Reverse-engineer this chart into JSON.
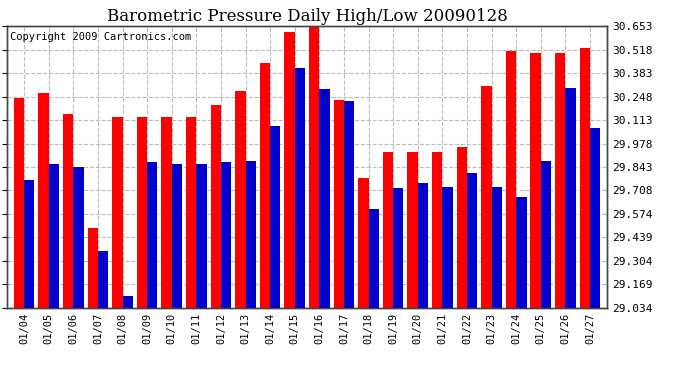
{
  "title": "Barometric Pressure Daily High/Low 20090128",
  "copyright": "Copyright 2009 Cartronics.com",
  "categories": [
    "01/04",
    "01/05",
    "01/06",
    "01/07",
    "01/08",
    "01/09",
    "01/10",
    "01/11",
    "01/12",
    "01/13",
    "01/14",
    "01/15",
    "01/16",
    "01/17",
    "01/18",
    "01/19",
    "01/20",
    "01/21",
    "01/22",
    "01/23",
    "01/24",
    "01/25",
    "01/26",
    "01/27"
  ],
  "highs": [
    30.24,
    30.27,
    30.15,
    29.49,
    30.13,
    30.13,
    30.13,
    30.13,
    30.2,
    30.28,
    30.44,
    30.62,
    30.65,
    30.23,
    29.78,
    29.93,
    29.93,
    29.93,
    29.96,
    30.31,
    30.51,
    30.5,
    30.5,
    30.53
  ],
  "lows": [
    29.77,
    29.86,
    29.84,
    29.36,
    29.1,
    29.87,
    29.86,
    29.86,
    29.87,
    29.88,
    30.08,
    30.41,
    30.29,
    30.22,
    29.6,
    29.72,
    29.75,
    29.73,
    29.81,
    29.73,
    29.67,
    29.88,
    30.3,
    30.07
  ],
  "ymin": 29.034,
  "ymax": 30.653,
  "yticks": [
    29.034,
    29.169,
    29.304,
    29.439,
    29.574,
    29.708,
    29.843,
    29.978,
    30.113,
    30.248,
    30.383,
    30.518,
    30.653
  ],
  "high_color": "#ff0000",
  "low_color": "#0000cc",
  "bg_color": "#ffffff",
  "grid_color": "#bbbbbb",
  "title_fontsize": 12,
  "copyright_fontsize": 7.5,
  "bar_width": 0.42
}
